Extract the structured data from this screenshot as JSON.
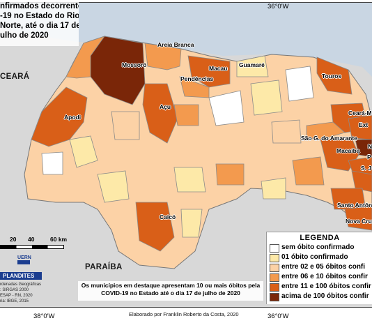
{
  "title_lines": [
    "nfirmados decorrentes",
    "-19 no Estado do Rio",
    "Norte, até o dia 17 de",
    "ulho de 2020"
  ],
  "coordinates": {
    "top_right": "36°0'W",
    "bottom_left": "38°0'W",
    "bottom_right": "36°0'W"
  },
  "regions": {
    "ceara": "CEARÁ",
    "paraiba": "PARAÍBA"
  },
  "cities": [
    {
      "id": "areia-branca",
      "label": "Areia Branca"
    },
    {
      "id": "mossoro",
      "label": "Mossoró"
    },
    {
      "id": "macau",
      "label": "Macau"
    },
    {
      "id": "guamare",
      "label": "Guamaré"
    },
    {
      "id": "pendencias",
      "label": "Pendências"
    },
    {
      "id": "touros",
      "label": "Touros"
    },
    {
      "id": "apodi",
      "label": "Apodi"
    },
    {
      "id": "acu",
      "label": "Açu"
    },
    {
      "id": "ceara-mirim",
      "label": "Ceará-Mi"
    },
    {
      "id": "ext",
      "label": "Ext"
    },
    {
      "id": "sao-goncalo",
      "label": "São G. do Amarante"
    },
    {
      "id": "macaiba",
      "label": "Macaíba"
    },
    {
      "id": "natal-partial",
      "label": "N"
    },
    {
      "id": "parnamirim-partial",
      "label": "P"
    },
    {
      "id": "sao-jose",
      "label": "S. J"
    },
    {
      "id": "santo-antonio",
      "label": "Santo Antônio"
    },
    {
      "id": "nova-cruz",
      "label": "Nova Cruz"
    },
    {
      "id": "caico",
      "label": "Caicó"
    }
  ],
  "legend": {
    "title": "LEGENDA",
    "items": [
      {
        "label": "sem óbito confirmado",
        "color": "#ffffff"
      },
      {
        "label": "01 óbito confirmado",
        "color": "#fde9a8"
      },
      {
        "label": "entre 02 e 05 óbitos confi",
        "color": "#fcd2a6"
      },
      {
        "label": "entre 06 e 10 óbitos confir",
        "color": "#f39a4e"
      },
      {
        "label": "entre 11 e 100 óbitos confir",
        "color": "#d95f18"
      },
      {
        "label": "acima de 100 óbitos confir",
        "color": "#7a2608"
      }
    ]
  },
  "scale": {
    "labels": [
      "20",
      "40",
      "60 km"
    ]
  },
  "logos": {
    "uern": "UERN",
    "plan": "PLANDITES"
  },
  "credits": [
    "rdenadas Geográficas",
    ": SIRGAS 2000",
    "ESAP - RN, 2020",
    "ria: IBGE, 2015"
  ],
  "note": "Os municípios em destaque apresentam 10 ou mais óbitos pela COVID-19 no Estado até o dia 17 de julho de 2020",
  "author": "Elaborado por Franklin Roberto da Costa, 2020",
  "colors": {
    "sea": "#c9d6e3",
    "neighbor_land": "#d8d8d8",
    "border": "#9a9a9a"
  }
}
